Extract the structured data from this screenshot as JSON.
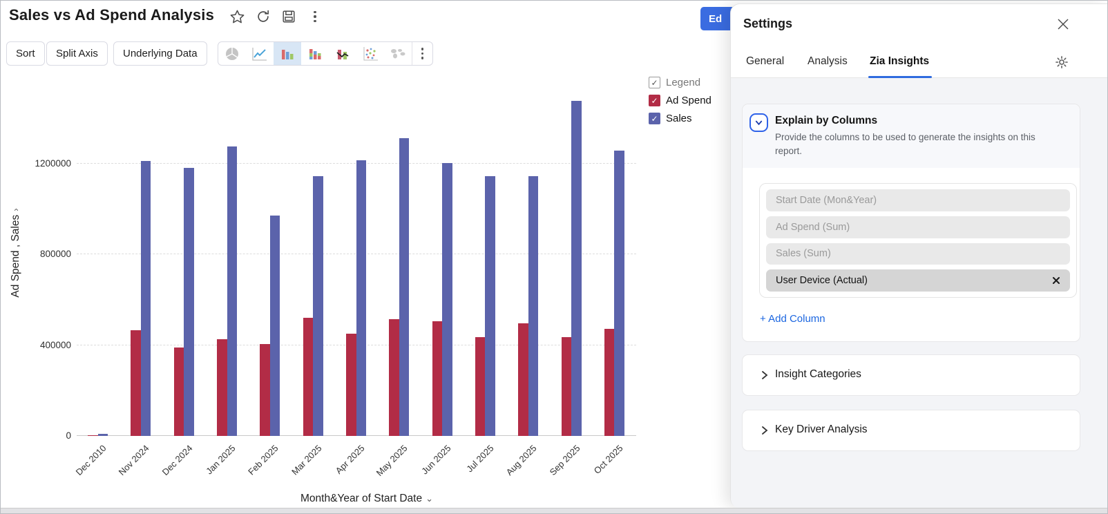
{
  "window": {
    "title": "Sales vs Ad Spend Analysis",
    "edit_button_label": "Ed",
    "title_icons": [
      "star-icon",
      "refresh-icon",
      "save-icon",
      "more-options-icon"
    ]
  },
  "toolbar": {
    "buttons": [
      "Sort",
      "Split Axis",
      "Underlying Data"
    ],
    "chart_types": [
      "pie-chart",
      "line-chart",
      "bar-chart",
      "stacked-bar-chart",
      "combo-chart",
      "bubble-chart",
      "map-chart",
      "more-chart-options"
    ],
    "selected_chart_type": "bar-chart"
  },
  "legend": {
    "title": "Legend",
    "items": [
      {
        "label": "Ad Spend",
        "color": "#b22c46",
        "checked": true
      },
      {
        "label": "Sales",
        "color": "#5b63ab",
        "checked": true
      }
    ]
  },
  "chart_data": {
    "type": "bar",
    "categories": [
      "Dec 2010",
      "Nov 2024",
      "Dec 2024",
      "Jan 2025",
      "Feb 2025",
      "Mar 2025",
      "Apr 2025",
      "May 2025",
      "Jun 2025",
      "Jul 2025",
      "Aug 2025",
      "Sep 2025",
      "Oct 2025"
    ],
    "series": [
      {
        "name": "Ad Spend",
        "color": "#b22c46",
        "values": [
          2000,
          465000,
          390000,
          425000,
          405000,
          520000,
          450000,
          515000,
          505000,
          435000,
          495000,
          435000,
          470000
        ]
      },
      {
        "name": "Sales",
        "color": "#5b63ab",
        "values": [
          9000,
          1210000,
          1180000,
          1275000,
          970000,
          1145000,
          1215000,
          1310000,
          1200000,
          1145000,
          1145000,
          1475000,
          1255000
        ]
      }
    ],
    "xlabel": "Month&Year of Start Date",
    "ylabel": "Ad Spend , Sales",
    "yticks": [
      0,
      400000,
      800000,
      1200000
    ],
    "ylim": [
      0,
      1570000
    ],
    "grid": "dashed-horizontal",
    "legend_position": "top-right"
  },
  "settings": {
    "title": "Settings",
    "tabs": [
      {
        "label": "General",
        "active": false
      },
      {
        "label": "Analysis",
        "active": false
      },
      {
        "label": "Zia Insights",
        "active": true
      }
    ],
    "explain": {
      "title": "Explain by Columns",
      "description": "Provide the columns to be used to generate the insights on this report.",
      "columns": [
        {
          "label": "Start Date (Mon&Year)",
          "active": false,
          "removable": false
        },
        {
          "label": "Ad Spend (Sum)",
          "active": false,
          "removable": false
        },
        {
          "label": "Sales (Sum)",
          "active": false,
          "removable": false
        },
        {
          "label": "User Device (Actual)",
          "active": true,
          "removable": true
        }
      ],
      "add_label": "+ Add Column"
    },
    "sections": [
      {
        "label": "Insight Categories"
      },
      {
        "label": "Key Driver Analysis"
      }
    ]
  },
  "colors": {
    "accent": "#2f6bdf",
    "link": "#1b66e0",
    "selected_icon_bg": "#d8e6f5",
    "panel_bg": "#f3f4f7"
  }
}
